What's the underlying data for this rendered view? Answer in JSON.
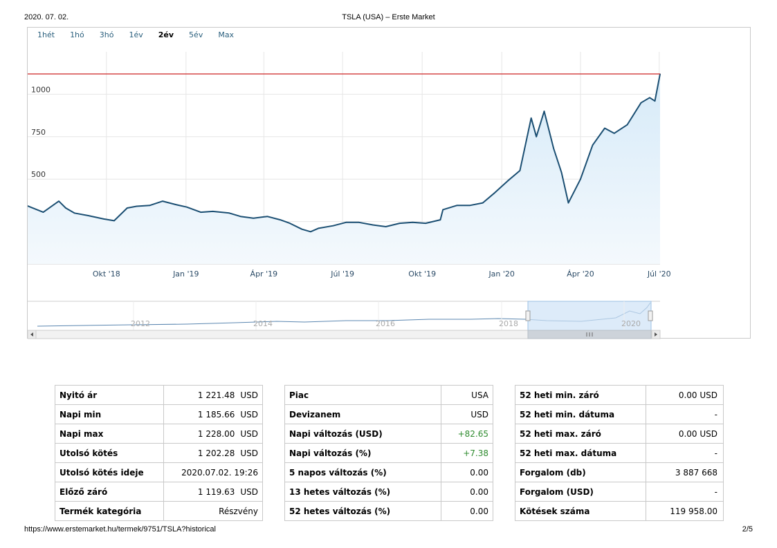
{
  "header": {
    "date": "2020. 07. 02.",
    "title": "TSLA (USA) – Erste Market"
  },
  "footer": {
    "url": "https://www.erstemarket.hu/termek/9751/TSLA?historical",
    "page": "2/5"
  },
  "chart": {
    "ranges": [
      {
        "label": "1hét",
        "active": false
      },
      {
        "label": "1hó",
        "active": false
      },
      {
        "label": "3hó",
        "active": false
      },
      {
        "label": "1év",
        "active": false
      },
      {
        "label": "2év",
        "active": true
      },
      {
        "label": "5év",
        "active": false
      },
      {
        "label": "Max",
        "active": false
      }
    ],
    "colors": {
      "line": "#1a4e72",
      "reference_line": "#cc2222",
      "navigator_fill": "#cfe3f7"
    }
  },
  "chart_data": {
    "type": "area",
    "title": "",
    "xlabel": "",
    "ylabel": "",
    "y_ticks": [
      "0",
      "250",
      "500",
      "750",
      "1000"
    ],
    "ylim": [
      0,
      1250
    ],
    "x_ticks": [
      "Okt '18",
      "Jan '19",
      "Ápr '19",
      "Júl '19",
      "Okt '19",
      "Jan '20",
      "Ápr '20",
      "Júl '20"
    ],
    "reference_line": {
      "y": 1119.63
    },
    "grid": true,
    "series": [
      {
        "x": [
          "2018-07-02",
          "2018-07-20",
          "2018-08-07",
          "2018-08-15",
          "2018-08-25",
          "2018-09-10",
          "2018-09-28",
          "2018-10-10",
          "2018-10-25",
          "2018-11-05",
          "2018-11-20",
          "2018-12-05",
          "2018-12-20",
          "2019-01-02",
          "2019-01-18",
          "2019-02-01",
          "2019-02-20",
          "2019-03-05",
          "2019-03-20",
          "2019-04-05",
          "2019-04-20",
          "2019-05-01",
          "2019-05-15",
          "2019-05-25",
          "2019-06-03",
          "2019-06-20",
          "2019-07-05",
          "2019-07-20",
          "2019-08-05",
          "2019-08-20",
          "2019-09-05",
          "2019-09-20",
          "2019-10-05",
          "2019-10-22",
          "2019-10-25",
          "2019-11-10",
          "2019-11-25",
          "2019-12-10",
          "2019-12-24",
          "2020-01-08",
          "2020-01-22",
          "2020-02-04",
          "2020-02-10",
          "2020-02-19",
          "2020-03-01",
          "2020-03-10",
          "2020-03-18",
          "2020-04-01",
          "2020-04-15",
          "2020-04-29",
          "2020-05-10",
          "2020-05-25",
          "2020-06-10",
          "2020-06-20",
          "2020-06-26",
          "2020-07-02"
        ],
        "y": [
          342,
          305,
          370,
          330,
          300,
          285,
          265,
          255,
          330,
          340,
          345,
          370,
          350,
          335,
          305,
          310,
          300,
          280,
          270,
          280,
          260,
          240,
          205,
          190,
          210,
          225,
          245,
          245,
          230,
          220,
          240,
          245,
          240,
          260,
          320,
          345,
          345,
          360,
          420,
          490,
          550,
          860,
          750,
          900,
          680,
          540,
          360,
          500,
          700,
          800,
          770,
          820,
          950,
          980,
          960,
          1119
        ]
      }
    ],
    "navigator": {
      "x_ticks": [
        "2012",
        "2014",
        "2016",
        "2018",
        "2020"
      ]
    }
  },
  "tables": [
    {
      "rows": [
        {
          "label": "Nyitó ár",
          "value": "1 221.48",
          "unit": "USD"
        },
        {
          "label": "Napi min",
          "value": "1 185.66",
          "unit": "USD"
        },
        {
          "label": "Napi max",
          "value": "1 228.00",
          "unit": "USD"
        },
        {
          "label": "Utolsó kötés",
          "value": "1 202.28",
          "unit": "USD"
        },
        {
          "label": "Utolsó kötés ideje",
          "value": "2020.07.02. 19:26",
          "unit": ""
        },
        {
          "label": "Előző záró",
          "value": "1 119.63",
          "unit": "USD"
        },
        {
          "label": "Termék kategória",
          "value": "Részvény",
          "unit": ""
        }
      ]
    },
    {
      "rows": [
        {
          "label": "Piac",
          "value": "USA",
          "unit": ""
        },
        {
          "label": "Devizanem",
          "value": "USD",
          "unit": ""
        },
        {
          "label": "Napi változás (USD)",
          "value": "+82.65",
          "unit": "",
          "positive": true
        },
        {
          "label": "Napi változás (%)",
          "value": "+7.38",
          "unit": "",
          "positive": true
        },
        {
          "label": "5 napos változás (%)",
          "value": "0.00",
          "unit": ""
        },
        {
          "label": "13 hetes változás (%)",
          "value": "0.00",
          "unit": ""
        },
        {
          "label": "52 hetes változás (%)",
          "value": "0.00",
          "unit": ""
        }
      ]
    },
    {
      "rows": [
        {
          "label": "52 heti min. záró",
          "value": "0.00 USD",
          "unit": ""
        },
        {
          "label": "52 heti min. dátuma",
          "value": "-",
          "unit": ""
        },
        {
          "label": "52 heti max. záró",
          "value": "0.00 USD",
          "unit": ""
        },
        {
          "label": "52 heti max. dátuma",
          "value": "-",
          "unit": ""
        },
        {
          "label": "Forgalom (db)",
          "value": "3 887 668",
          "unit": ""
        },
        {
          "label": "Forgalom (USD)",
          "value": "-",
          "unit": ""
        },
        {
          "label": "Kötések száma",
          "value": "119 958.00",
          "unit": ""
        }
      ]
    }
  ]
}
